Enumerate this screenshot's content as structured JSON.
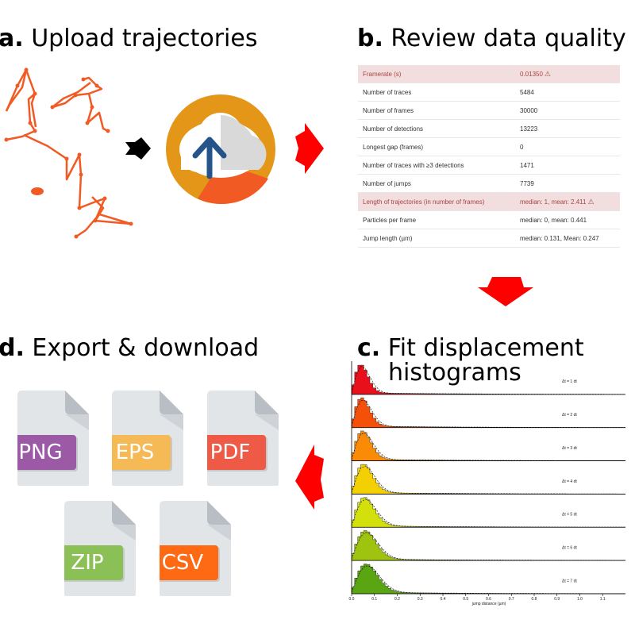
{
  "panels": {
    "a": {
      "letter": "a.",
      "text": "Upload trajectories"
    },
    "b": {
      "letter": "b.",
      "text": "Review data quality"
    },
    "c": {
      "letter": "c.",
      "text": "Fit displacement",
      "text2": "histograms"
    },
    "d": {
      "letter": "d.",
      "text": "Export & download"
    }
  },
  "quality_table": [
    {
      "label": "Framerate (s)",
      "value": "0.01350",
      "warn": true
    },
    {
      "label": "Number of traces",
      "value": "5484",
      "warn": false
    },
    {
      "label": "Number of frames",
      "value": "30000",
      "warn": false
    },
    {
      "label": "Number of detections",
      "value": "13223",
      "warn": false
    },
    {
      "label": "Longest gap (frames)",
      "value": "0",
      "warn": false
    },
    {
      "label": "Number of traces with ≥3 detections",
      "value": "1471",
      "warn": false
    },
    {
      "label": "Number of jumps",
      "value": "7739",
      "warn": false
    },
    {
      "label": "Length of trajectories (in number of frames)",
      "value": "median: 1, mean: 2.411",
      "warn": true
    },
    {
      "label": "Particles per frame",
      "value": "median: 0, mean: 0.441",
      "warn": false
    },
    {
      "label": "Jump length (µm)",
      "value": "median: 0.131, Mean: 0.247",
      "warn": false
    }
  ],
  "warning_icon": "⚠",
  "export_formats": [
    {
      "label": "PNG",
      "color": "#9b59a6"
    },
    {
      "label": "EPS",
      "color": "#f5b955"
    },
    {
      "label": "PDF",
      "color": "#ee5a45"
    },
    {
      "label": "ZIP",
      "color": "#8bc057"
    },
    {
      "label": "CSV",
      "color": "#fd6a13"
    }
  ],
  "histograms": {
    "series": [
      {
        "label": "Δt = 1 dt",
        "color": "#e8101a"
      },
      {
        "label": "Δt = 2 dt",
        "color": "#f4500a"
      },
      {
        "label": "Δt = 3 dt",
        "color": "#f98b07"
      },
      {
        "label": "Δt = 4 dt",
        "color": "#f3d003"
      },
      {
        "label": "Δt = 5 dt",
        "color": "#d4e00c"
      },
      {
        "label": "Δt = 6 dt",
        "color": "#9ec40f"
      },
      {
        "label": "Δt = 7 dt",
        "color": "#5aa612"
      }
    ],
    "x_ticks": [
      "0.0",
      "0.1",
      "0.2",
      "0.3",
      "0.4",
      "0.5",
      "0.6",
      "0.7",
      "0.8",
      "0.9",
      "1.0",
      "1.1"
    ],
    "xlabel": "jump distance (µm)"
  },
  "colors": {
    "trajectory": "#f25a24",
    "arrow": "#ff0000",
    "cloud_bg": "#e39617"
  }
}
